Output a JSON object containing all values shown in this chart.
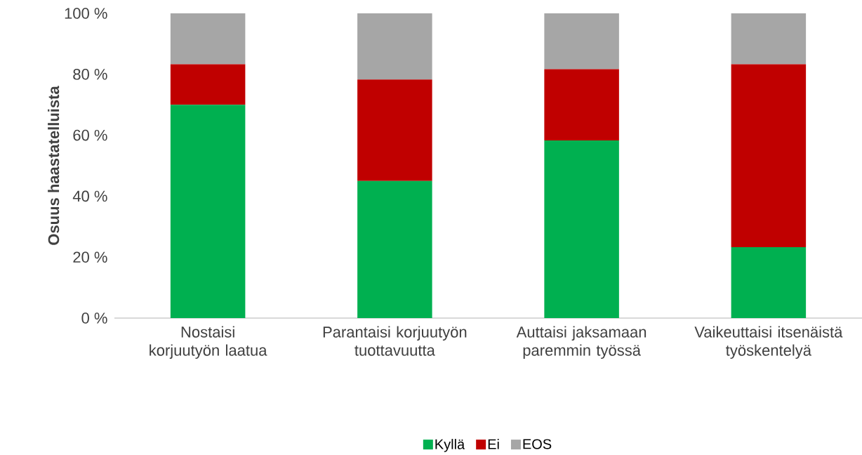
{
  "chart_data": {
    "type": "bar",
    "stacked": true,
    "ylabel": "Osuus haastatelluista",
    "categories": [
      "Nostaisi korjuutyön laatua",
      "Parantaisi korjuutyön tuottavuutta",
      "Auttaisi jaksamaan paremmin työssä",
      "Vaikeuttaisi itsenäistä työskentelyä"
    ],
    "series": [
      {
        "name": "Kyllä",
        "color": "#00b050",
        "values": [
          70,
          45,
          58.3,
          23.3
        ]
      },
      {
        "name": "Ei",
        "color": "#c00000",
        "values": [
          13.3,
          33.3,
          23.4,
          60
        ]
      },
      {
        "name": "EOS",
        "color": "#a6a6a6",
        "values": [
          16.7,
          21.7,
          18.3,
          16.7
        ]
      }
    ],
    "ylim": [
      0,
      100
    ],
    "yticks": [
      {
        "value": 0,
        "label": "0 %"
      },
      {
        "value": 20,
        "label": "20 %"
      },
      {
        "value": 40,
        "label": "40 %"
      },
      {
        "value": 60,
        "label": "60 %"
      },
      {
        "value": 80,
        "label": "80 %"
      },
      {
        "value": 100,
        "label": "100 %"
      }
    ],
    "legend": "bottom"
  }
}
